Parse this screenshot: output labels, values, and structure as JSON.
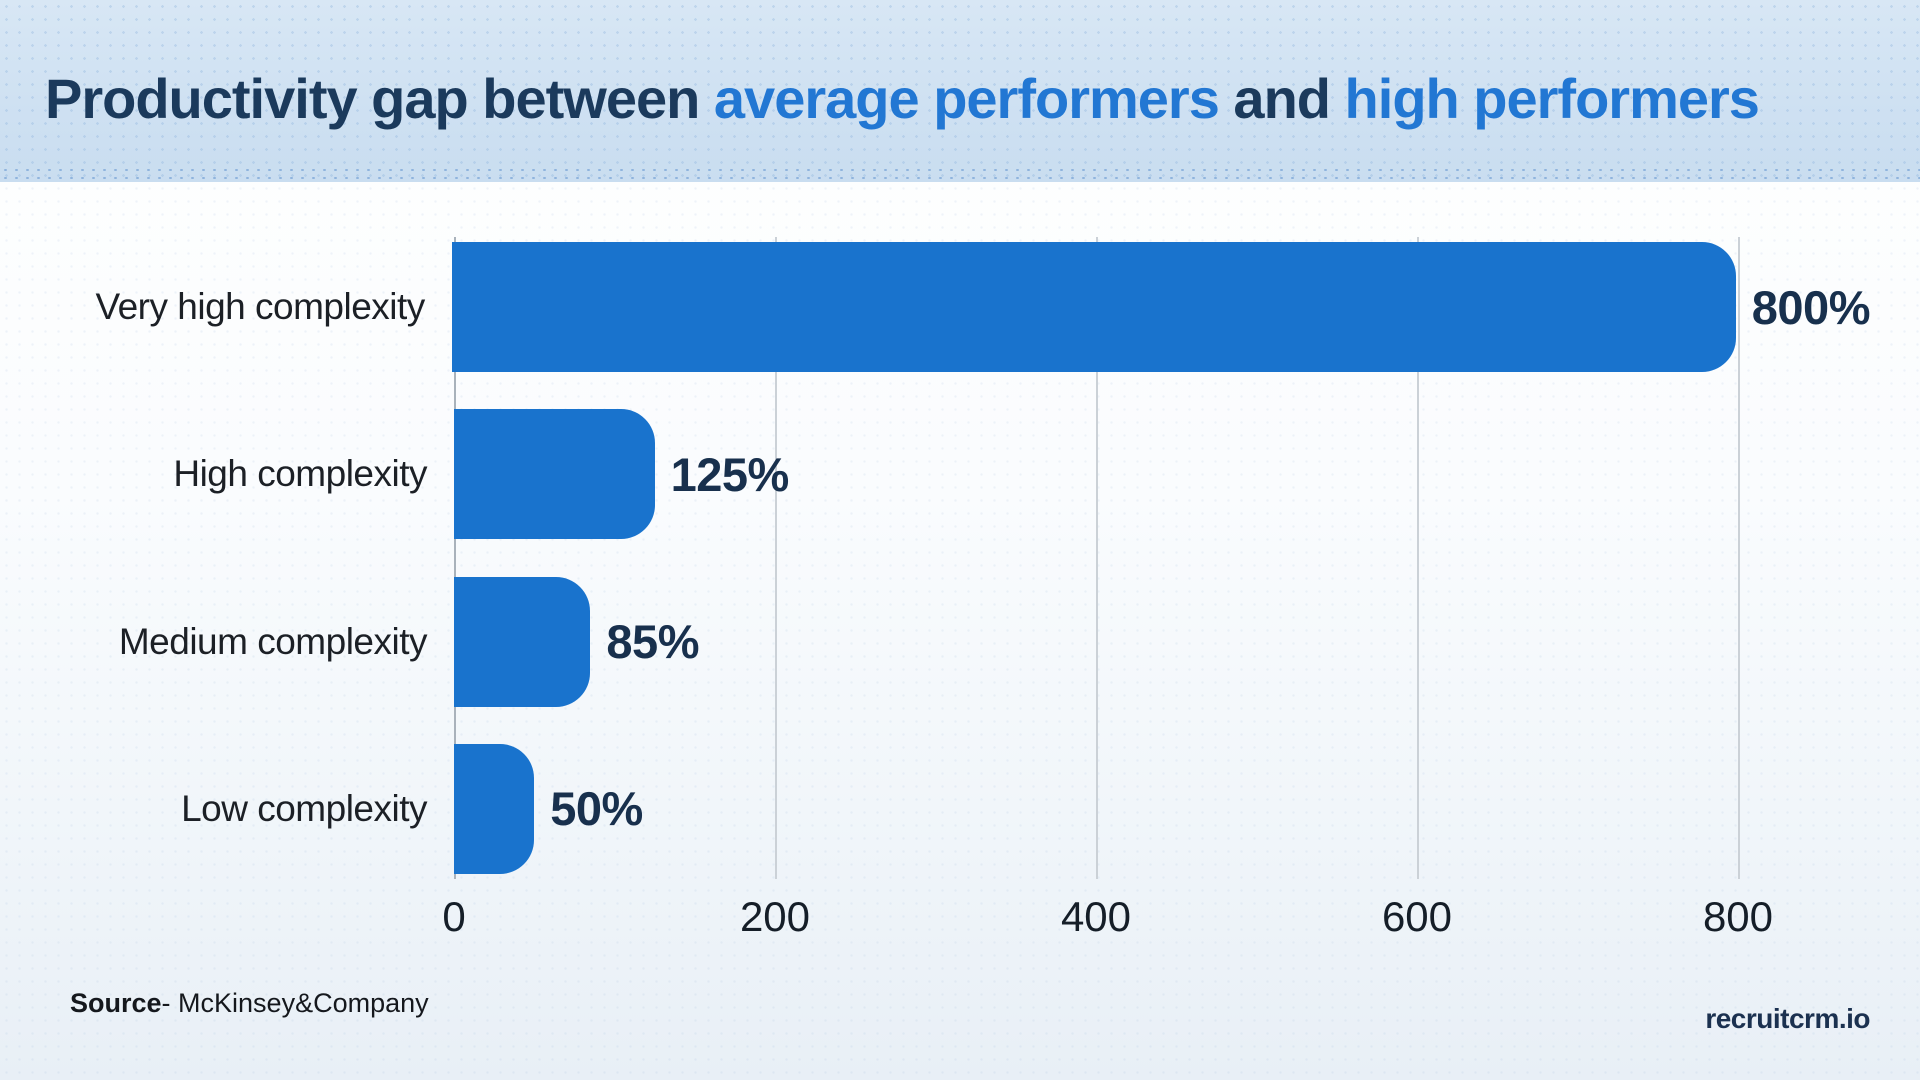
{
  "title": {
    "parts": [
      {
        "text": "Productivity gap between ",
        "style": "navy"
      },
      {
        "text": "average performers",
        "style": "blue"
      },
      {
        "text": " and ",
        "style": "navy"
      },
      {
        "text": "high performers",
        "style": "blue"
      }
    ]
  },
  "chart_data": {
    "type": "bar",
    "orientation": "horizontal",
    "title": "Productivity gap between average performers and high performers",
    "categories": [
      "Very high complexity",
      "High complexity",
      "Medium complexity",
      "Low complexity"
    ],
    "values": [
      800,
      125,
      85,
      50
    ],
    "value_labels": [
      "800%",
      "125%",
      "85%",
      "50%"
    ],
    "xlabel": "",
    "ylabel": "",
    "xlim": [
      0,
      800
    ],
    "xticks": [
      0,
      200,
      400,
      600,
      800
    ],
    "xtick_labels": [
      "0",
      "200",
      "400",
      "600",
      "800"
    ],
    "grid": true,
    "legend": "none",
    "bar_color": "#1973cd"
  },
  "footer": {
    "source_bold": "Source",
    "source_rest": "- McKinsey&Company",
    "brand": "recruitcrm.io"
  },
  "colors": {
    "navy": "#1b3a5c",
    "title_blue": "#2277d3",
    "bar_blue": "#1973cd",
    "value_navy": "#18304d",
    "brand_navy": "#1b3150",
    "header_bg": "#cfe1f2",
    "grid": "#cbd1d7",
    "axis": "#a9b2bb"
  }
}
